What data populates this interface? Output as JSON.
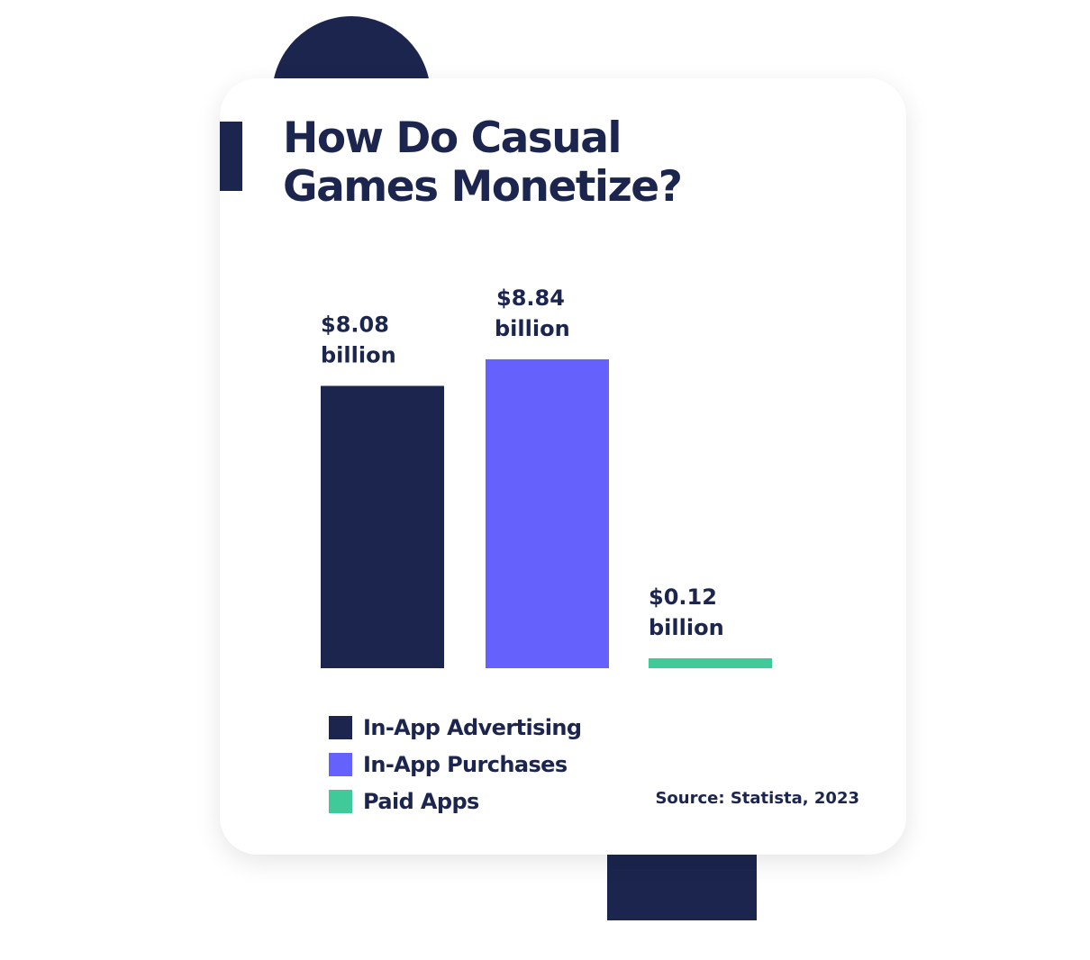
{
  "colors": {
    "navy": "#1b254e",
    "purple": "#6461fc",
    "green": "#40c999",
    "card_background": "#ffffff"
  },
  "chart_data": {
    "type": "bar",
    "title": "How Do Casual Games Monetize?",
    "categories": [
      "In-App Advertising",
      "In-App Purchases",
      "Paid Apps"
    ],
    "values": [
      8.08,
      8.84,
      0.12
    ],
    "unit": "billion",
    "data_labels": [
      {
        "amount": "$8.08",
        "unit": "billion"
      },
      {
        "amount": "$8.84",
        "unit": "billion"
      },
      {
        "amount": "$0.12",
        "unit": "billion"
      }
    ],
    "colors": [
      "#1b254e",
      "#6461fc",
      "#40c999"
    ],
    "ylim": [
      0,
      8.84
    ],
    "grid": false,
    "axes_visible": false,
    "legend_position": "bottom-left",
    "source": "Source: Statista, 2023"
  }
}
